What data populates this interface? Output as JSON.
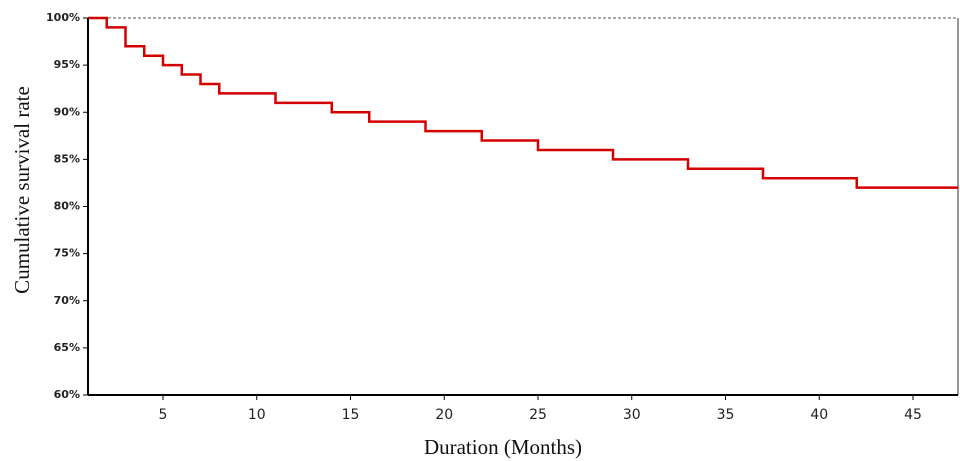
{
  "chart_data": {
    "type": "line",
    "step": "post",
    "x_label": "Duration (Months)",
    "y_label": "Cumulative survival rate",
    "x": [
      1,
      2,
      3,
      4,
      5,
      6,
      7,
      8,
      11,
      14,
      16,
      19,
      22,
      25,
      29,
      33,
      37,
      42,
      47.4
    ],
    "series": [
      {
        "color": "#d40000",
        "values": [
          100,
          99,
          97,
          96,
          95,
          94,
          93,
          92,
          91,
          90,
          89,
          88,
          87,
          86,
          85,
          84,
          83,
          82,
          82
        ]
      }
    ],
    "reference_line": 100,
    "xlim": [
      1,
      47.4
    ],
    "xticks": [
      5,
      10,
      15,
      20,
      25,
      30,
      35,
      40,
      45
    ],
    "ylim": [
      60,
      100
    ],
    "yticks": [
      {
        "value": 60,
        "label": "60%"
      },
      {
        "value": 65,
        "label": "65%"
      },
      {
        "value": 70,
        "label": "70%"
      },
      {
        "value": 75,
        "label": "75%"
      },
      {
        "value": 80,
        "label": "80%"
      },
      {
        "value": 85,
        "label": "85%"
      },
      {
        "value": 90,
        "label": "90%"
      },
      {
        "value": 95,
        "label": "95%"
      },
      {
        "value": 100,
        "label": "100%"
      }
    ],
    "grid": false
  }
}
